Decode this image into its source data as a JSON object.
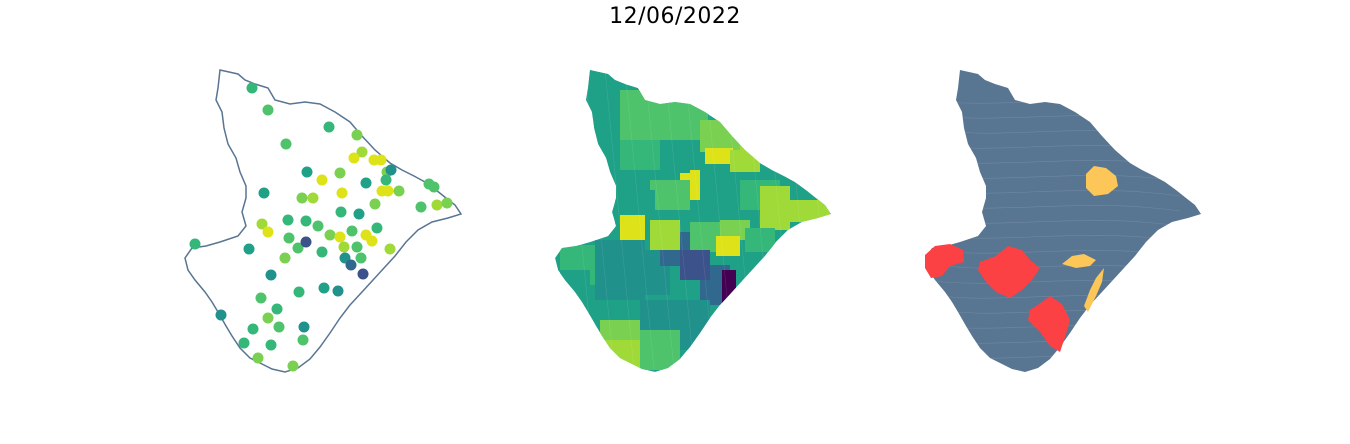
{
  "title": "12/06/2022",
  "colors": {
    "outline": "#587592",
    "viridis": [
      "#440154",
      "#3b528b",
      "#31688e",
      "#21918c",
      "#1fa187",
      "#35b779",
      "#4ec36b",
      "#7ad151",
      "#a0da39",
      "#dde318"
    ],
    "panel3_base": "#587592",
    "panel3_red": "#fb4143",
    "panel3_yellow": "#fcc659"
  },
  "panels": [
    {
      "name": "station-points-map"
    },
    {
      "name": "choropleth-map"
    },
    {
      "name": "categorical-map"
    }
  ]
}
